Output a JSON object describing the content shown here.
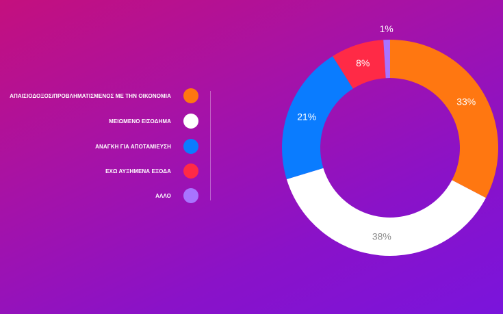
{
  "chart_data": {
    "type": "donut",
    "title": "",
    "categories": [
      "ΑΠΑΙΣΙΟΔΟΞΟΣ/ΠΡΟΒΛΗΜΑΤΙΣΜΕΝΟΣ ΜΕ ΤΗΝ ΟΙΚΟΝΟΜΙΑ",
      "ΜΕΙΩΜΕΝΟ ΕΙΣΟΔΗΜΑ",
      "ΑΝΑΓΚΗ ΓΙΑ ΑΠΟΤΑΜΙΕΥΣΗ",
      "ΕΧΩ ΑΥΞΗΜΕΝΑ ΕΞΟΔΑ",
      "ΑΛΛΟ"
    ],
    "values": [
      33,
      38,
      21,
      8,
      1
    ],
    "value_labels": [
      "33%",
      "38%",
      "21%",
      "8%",
      "1%"
    ],
    "colors": [
      "#ff7711",
      "#ffffff",
      "#0a7cff",
      "#ff2a46",
      "#a874ff"
    ],
    "label_colors": [
      "#ffffff",
      "#8a8a8a",
      "#ffffff",
      "#ffffff",
      "#ffffff"
    ],
    "start_angle_deg": 0,
    "direction": "clockwise",
    "legend_position": "left"
  }
}
